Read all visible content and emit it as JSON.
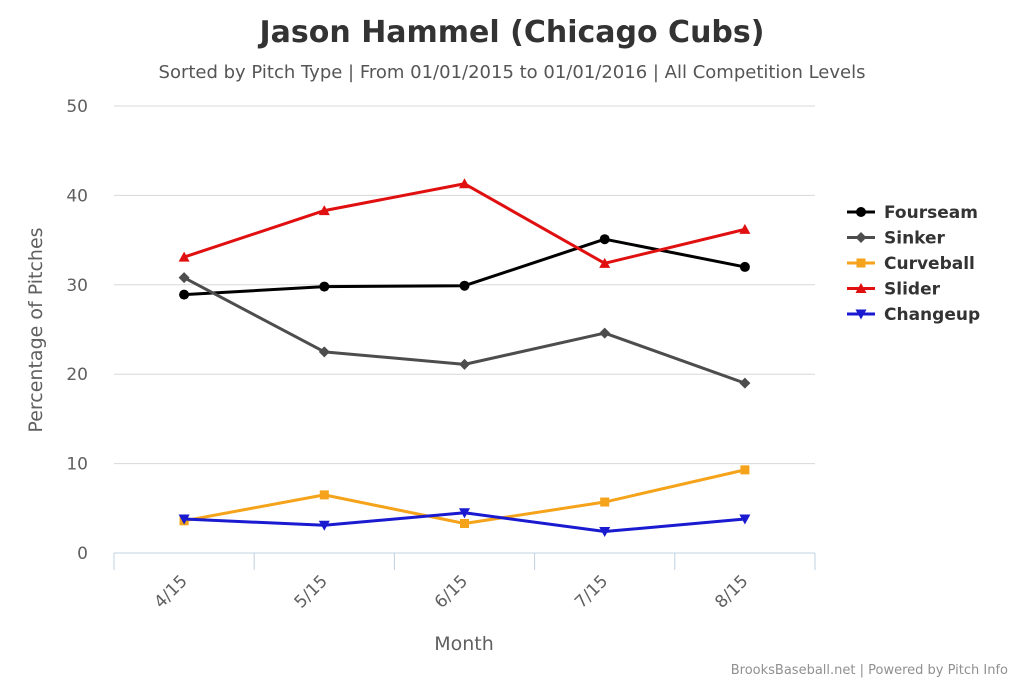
{
  "chart_data": {
    "type": "line",
    "title": "Jason Hammel (Chicago Cubs)",
    "subtitle": "Sorted by Pitch Type | From 01/01/2015 to 01/01/2016 | All Competition Levels",
    "xlabel": "Month",
    "ylabel": "Percentage of Pitches",
    "categories": [
      "4/15",
      "5/15",
      "6/15",
      "7/15",
      "8/15"
    ],
    "ylim": [
      0,
      50
    ],
    "yticks": [
      "0",
      "10",
      "20",
      "30",
      "40",
      "50"
    ],
    "grid": true,
    "legend_position": "right",
    "series": [
      {
        "name": "Fourseam",
        "color": "#000000",
        "marker": "circle",
        "values": [
          28.9,
          29.8,
          29.9,
          35.1,
          32.0
        ]
      },
      {
        "name": "Sinker",
        "color": "#4d4d4d",
        "marker": "diamond",
        "values": [
          30.8,
          22.5,
          21.1,
          24.6,
          19.0
        ]
      },
      {
        "name": "Curveball",
        "color": "#f5a31a",
        "marker": "square",
        "values": [
          3.6,
          6.5,
          3.3,
          5.7,
          9.3
        ]
      },
      {
        "name": "Slider",
        "color": "#e01010",
        "marker": "triangle",
        "values": [
          33.1,
          38.3,
          41.3,
          32.4,
          36.2
        ]
      },
      {
        "name": "Changeup",
        "color": "#1a1ad0",
        "marker": "triangle-down",
        "values": [
          3.8,
          3.1,
          4.5,
          2.4,
          3.8
        ]
      }
    ]
  },
  "credits": "BrooksBaseball.net | Powered by Pitch Info"
}
